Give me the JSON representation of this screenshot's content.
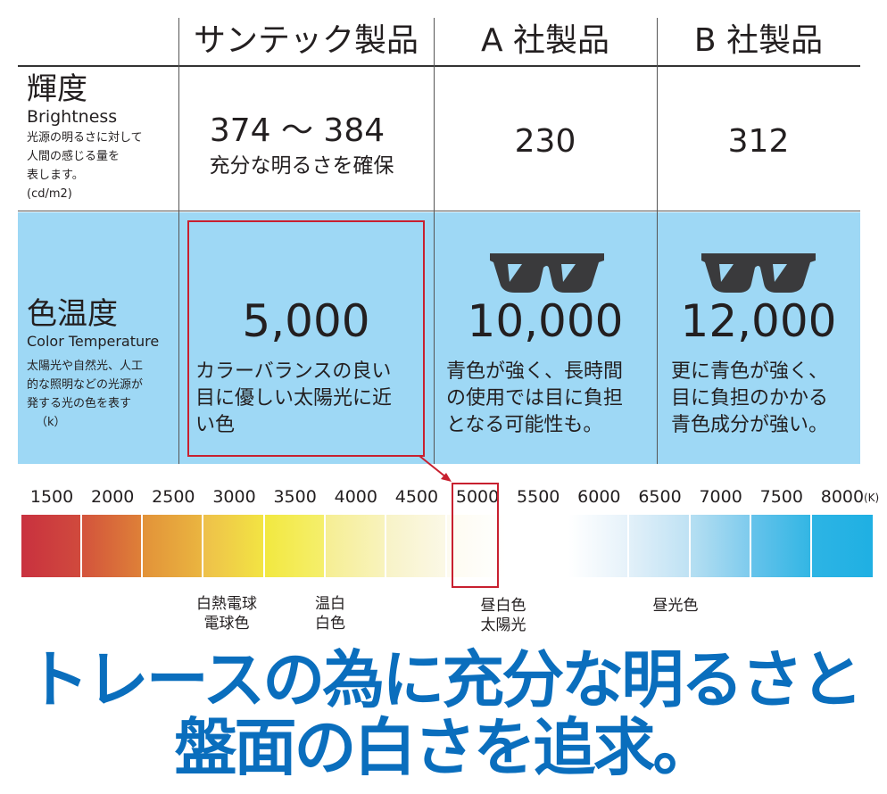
{
  "columns": {
    "suntech": "サンテック製品",
    "company_a": "A 社製品",
    "company_b": "B 社製品"
  },
  "brightness": {
    "title": "輝度",
    "title_en": "Brightness",
    "desc_lines": [
      "光源の明るさに対して",
      "人間の感じる量を",
      "表します。",
      "(cd/m2)"
    ],
    "suntech_value": "374 〜 384",
    "suntech_note": "充分な明るさを確保",
    "a_value": "230",
    "b_value": "312"
  },
  "color_temp": {
    "title": "色温度",
    "title_en": "Color Temperature",
    "desc_lines": [
      "太陽光や自然光、人工",
      "的な照明などの光源が",
      "発する光の色を表す",
      "（k）"
    ],
    "suntech_value": "5,000",
    "suntech_note_lines": [
      "カラーバランスの良い",
      "目に優しい太陽光に近",
      "い色"
    ],
    "a_value": "10,000",
    "a_note_lines": [
      "青色が強く、長時間",
      "の使用では目に負担",
      "となる可能性も。"
    ],
    "b_value": "12,000",
    "b_note_lines": [
      "更に青色が強く、",
      "目に負担のかかる",
      "青色成分が強い。"
    ],
    "icons": [
      "sunglasses-icon",
      "sunglasses-icon"
    ]
  },
  "scale": {
    "ticks": [
      "1500",
      "2000",
      "2500",
      "3000",
      "3500",
      "4000",
      "4500",
      "5000",
      "5500",
      "6000",
      "6500",
      "7000",
      "7500",
      "8000"
    ],
    "unit": "(K)",
    "highlight_tick": "5000",
    "segment_colors": [
      [
        "#c9313f",
        "#d04a3d"
      ],
      [
        "#d3533c",
        "#de8038"
      ],
      [
        "#e29239",
        "#eab540"
      ],
      [
        "#eec04a",
        "#f2e443"
      ],
      [
        "#f2e840",
        "#f5ef6c"
      ],
      [
        "#f6ee93",
        "#f8f3bd"
      ],
      [
        "#f8f3c7",
        "#fbf8e6"
      ],
      [
        "#fdfbf0",
        "#ffffff"
      ],
      [
        "#ffffff",
        "#ffffff"
      ],
      [
        "#ffffff",
        "#e6f2fa"
      ],
      [
        "#e2f0f9",
        "#bfe2f4"
      ],
      [
        "#b6dff2",
        "#7ecbed"
      ],
      [
        "#66c3eb",
        "#33b6e4"
      ],
      [
        "#2db4e4",
        "#1fb0e3"
      ]
    ],
    "notes": [
      {
        "lines": [
          "白熱電球",
          "電球色"
        ]
      },
      {
        "lines": [
          "温白",
          "白色"
        ]
      },
      {
        "lines": [
          "昼白色",
          "太陽光"
        ]
      },
      {
        "lines": [
          "昼光色"
        ]
      }
    ]
  },
  "headline": {
    "line1": "トレースの為に充分な明るさと",
    "line2": "盤面の白さを追求。"
  },
  "colors": {
    "accent_red": "#c8202f",
    "band_blue": "#9ed8f5",
    "headline_blue": "#0a6ebd"
  }
}
